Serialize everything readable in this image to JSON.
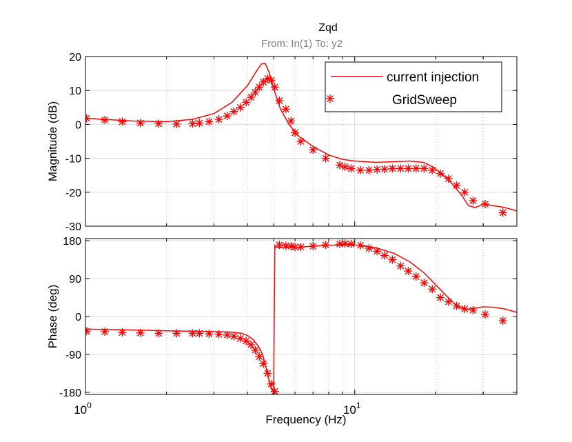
{
  "figure": {
    "title": "Zqd",
    "subtitle": "From: In(1)  To: y2",
    "colors": {
      "series": "#ff0000",
      "grid": "#dcdcdc",
      "axis": "#000000",
      "subtitle": "#7f7f7f"
    }
  },
  "chart_data": {
    "type": "line",
    "xlabel": "Frequency  (Hz)",
    "xscale": "log",
    "xlim": [
      1,
      40
    ],
    "xticks": [
      {
        "base": "10",
        "exp": "0",
        "value": 1
      },
      {
        "base": "10",
        "exp": "1",
        "value": 10
      }
    ],
    "legend": {
      "placement": "top-right",
      "entries": [
        {
          "label": "current injection",
          "style": "line"
        },
        {
          "label": "GridSweep",
          "style": "marker-asterisk"
        }
      ]
    },
    "panels": [
      {
        "name": "magnitude",
        "ylabel": "Magnitude (dB)",
        "ylim": [
          -30,
          20
        ],
        "yticks": [
          20,
          10,
          0,
          -10,
          -20,
          -30
        ],
        "series": [
          {
            "name": "current injection",
            "style": "line",
            "x": [
              1,
              1.5,
              2,
              2.5,
              3,
              3.5,
              4,
              4.3,
              4.5,
              4.65,
              4.8,
              5.0,
              5.3,
              5.7,
              6.2,
              7,
              8,
              9,
              10,
              12,
              14,
              16,
              18,
              19.5,
              21,
              23,
              25,
              26.5,
              28,
              30,
              33,
              36,
              40
            ],
            "y": [
              1.8,
              1.0,
              0.8,
              1.5,
              3.2,
              6.5,
              11.5,
              15.5,
              17.8,
              18.0,
              15.5,
              10.5,
              4.5,
              0,
              -3.5,
              -6.5,
              -9.0,
              -10.3,
              -10.8,
              -11.2,
              -11.0,
              -10.8,
              -11.2,
              -12.5,
              -14.5,
              -17.5,
              -21,
              -24,
              -24.5,
              -23.5,
              -24,
              -24.5,
              -25.5
            ]
          },
          {
            "name": "GridSweep",
            "style": "marker-asterisk",
            "x": [
              1.01,
              1.18,
              1.37,
              1.6,
              1.87,
              2.18,
              2.5,
              2.65,
              2.88,
              3.13,
              3.36,
              3.56,
              3.76,
              3.95,
              4.12,
              4.27,
              4.42,
              4.58,
              4.75,
              4.9,
              5.05,
              5.25,
              5.55,
              5.8,
              6.0,
              6.3,
              7.0,
              7.8,
              8.8,
              9.2,
              9.7,
              10.5,
              11.3,
              12.1,
              12.9,
              13.8,
              14.8,
              15.8,
              16.9,
              18.1,
              19.4,
              20.8,
              22.3,
              23.9,
              25.6,
              27.5,
              30.5,
              35.5
            ],
            "y": [
              1.8,
              1.3,
              0.8,
              0.4,
              0.2,
              0.1,
              0.2,
              0.4,
              0.8,
              1.5,
              2.5,
              3.8,
              5.0,
              6.5,
              8.0,
              9.5,
              11.0,
              12.5,
              13.5,
              13.0,
              11.0,
              7.0,
              4.5,
              1.0,
              -2.5,
              -5.0,
              -7.5,
              -10.0,
              -12.0,
              -12.5,
              -13.0,
              -13.5,
              -13.5,
              -13.3,
              -13.2,
              -13.0,
              -13.0,
              -13.0,
              -13.0,
              -13.0,
              -13.5,
              -14.5,
              -16.0,
              -18.0,
              -20.0,
              -22.5,
              -23.5,
              -26.0
            ]
          }
        ]
      },
      {
        "name": "phase",
        "ylabel": "Phase (deg)",
        "ylim": [
          -185,
          185
        ],
        "yticks": [
          180,
          90,
          0,
          -90,
          -180
        ],
        "series": [
          {
            "name": "current injection",
            "style": "line",
            "x": [
              1,
              1.5,
              2,
              2.5,
              3,
              3.5,
              3.8,
              4.0,
              4.2,
              4.4,
              4.55,
              4.7,
              4.8,
              4.9,
              5.0,
              5.05,
              5.1,
              5.5,
              6,
              7,
              8,
              9,
              10,
              12,
              14,
              16,
              18,
              20,
              22,
              24,
              26,
              28,
              30,
              33,
              36,
              40
            ],
            "y": [
              -30,
              -32,
              -34,
              -35,
              -36,
              -37,
              -40,
              -45,
              -55,
              -72,
              -90,
              -125,
              -150,
              -172,
              -180,
              168,
              165,
              163,
              164,
              167,
              169,
              170,
              170,
              163,
              150,
              130,
              105,
              75,
              48,
              25,
              17,
              20,
              23,
              22,
              18,
              10
            ]
          },
          {
            "name": "GridSweep",
            "style": "marker-asterisk",
            "x": [
              1.01,
              1.18,
              1.37,
              1.6,
              1.87,
              2.18,
              2.5,
              2.65,
              2.88,
              3.13,
              3.36,
              3.56,
              3.76,
              3.95,
              4.12,
              4.27,
              4.42,
              4.58,
              4.75,
              4.9,
              5.05,
              5.25,
              5.55,
              5.8,
              6.0,
              6.3,
              7.0,
              7.8,
              8.8,
              9.2,
              9.7,
              10.5,
              11.3,
              12.1,
              12.9,
              13.8,
              14.8,
              15.8,
              16.9,
              18.1,
              19.4,
              20.8,
              22.3,
              23.9,
              25.6,
              27.5,
              30.5,
              35.5
            ],
            "y": [
              -35,
              -36,
              -38,
              -39,
              -40,
              -40,
              -40,
              -40,
              -41,
              -42,
              -44,
              -47,
              -52,
              -58,
              -67,
              -80,
              -95,
              -112,
              -135,
              -160,
              -178,
              170,
              168,
              167,
              165,
              165,
              167,
              170,
              172,
              173,
              172,
              169,
              162,
              155,
              145,
              135,
              120,
              108,
              95,
              80,
              65,
              45,
              35,
              25,
              18,
              15,
              5,
              -10
            ]
          }
        ]
      }
    ]
  }
}
